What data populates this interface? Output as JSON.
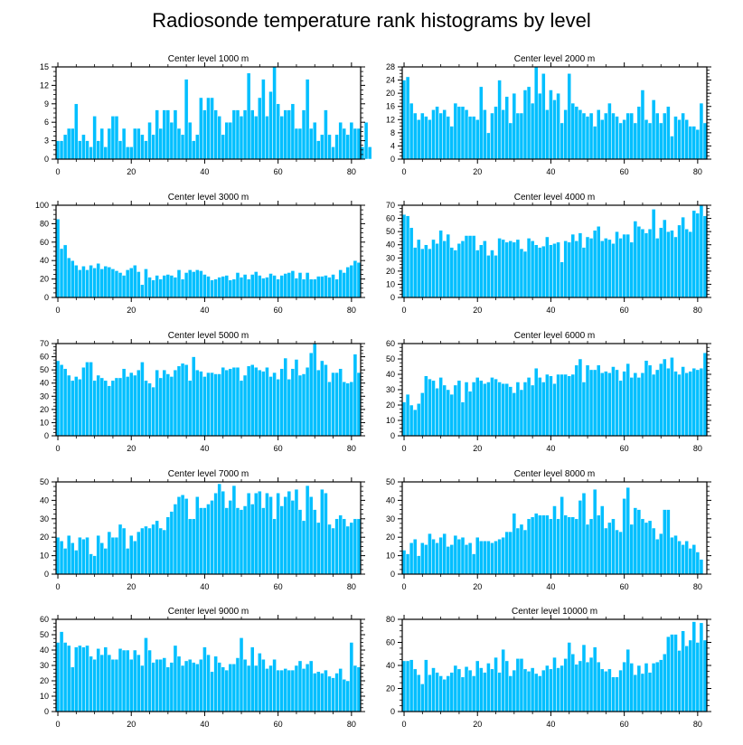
{
  "title": "Radiosonde temperature rank histograms by level",
  "chart_data": [
    {
      "type": "bar",
      "title": "Center level 1000 m",
      "xlabel": "",
      "ylabel": "",
      "x_ticks": [
        0,
        20,
        40,
        60,
        80
      ],
      "y_ticks": [
        0,
        3,
        6,
        9,
        12,
        15
      ],
      "xlim": [
        -0.5,
        82.5
      ],
      "ylim": [
        0,
        15
      ],
      "y_axis_side": "left",
      "color": "#00bfff",
      "values": [
        3,
        3,
        4,
        5,
        5,
        9,
        3,
        4,
        3,
        2,
        7,
        3,
        5,
        2,
        5,
        7,
        7,
        3,
        5,
        2,
        2,
        5,
        5,
        4,
        3,
        6,
        4,
        8,
        5,
        8,
        8,
        6,
        8,
        5,
        4,
        13,
        6,
        3,
        4,
        10,
        8,
        10,
        10,
        8,
        7,
        4,
        6,
        6,
        8,
        8,
        7,
        8,
        14,
        8,
        7,
        10,
        13,
        7,
        11,
        15,
        9,
        7,
        8,
        8,
        9,
        5,
        5,
        8,
        13,
        5,
        6,
        3,
        4,
        8,
        4,
        2,
        4,
        6,
        5,
        4,
        6,
        5,
        5,
        2,
        6,
        2
      ]
    },
    {
      "type": "bar",
      "title": "Center level 2000 m",
      "xlabel": "",
      "ylabel": "",
      "x_ticks": [
        0,
        20,
        40,
        60,
        80
      ],
      "y_ticks": [
        0,
        4,
        8,
        12,
        16,
        20,
        24,
        28
      ],
      "xlim": [
        -0.5,
        82.5
      ],
      "ylim": [
        0,
        28
      ],
      "y_axis_side": "left",
      "color": "#00bfff",
      "values": [
        24,
        25,
        17,
        14,
        12,
        14,
        13,
        12,
        15,
        16,
        14,
        15,
        13,
        10,
        17,
        16,
        16,
        15,
        13,
        13,
        12,
        22,
        15,
        8,
        14,
        16,
        24,
        15,
        19,
        11,
        20,
        14,
        14,
        21,
        22,
        17,
        28,
        20,
        26,
        15,
        21,
        18,
        20,
        11,
        15,
        26,
        17,
        16,
        15,
        14,
        13,
        14,
        10,
        15,
        12,
        14,
        17,
        14,
        13,
        11,
        12,
        14,
        14,
        11,
        16,
        21,
        12,
        11,
        18,
        14,
        11,
        14,
        16,
        7,
        13,
        12,
        14,
        12,
        10,
        10,
        9,
        17,
        11
      ]
    },
    {
      "type": "bar",
      "title": "Center level 3000 m",
      "xlabel": "",
      "ylabel": "",
      "x_ticks": [
        0,
        20,
        40,
        60,
        80
      ],
      "y_ticks": [
        0,
        20,
        40,
        60,
        80,
        100
      ],
      "xlim": [
        -0.5,
        82.5
      ],
      "ylim": [
        0,
        100
      ],
      "y_axis_side": "left",
      "color": "#00bfff",
      "values": [
        85,
        53,
        57,
        43,
        40,
        35,
        30,
        34,
        30,
        35,
        32,
        37,
        31,
        34,
        33,
        31,
        29,
        27,
        24,
        30,
        32,
        35,
        28,
        14,
        31,
        22,
        19,
        24,
        20,
        24,
        25,
        24,
        22,
        30,
        20,
        27,
        30,
        28,
        30,
        29,
        25,
        23,
        19,
        20,
        22,
        23,
        24,
        19,
        20,
        27,
        22,
        25,
        20,
        25,
        28,
        24,
        21,
        22,
        26,
        24,
        20,
        24,
        26,
        27,
        29,
        21,
        27,
        20,
        27,
        20,
        20,
        23,
        23,
        24,
        22,
        25,
        20,
        30,
        27,
        33,
        35,
        40,
        38
      ]
    },
    {
      "type": "bar",
      "title": "Center level 4000 m",
      "xlabel": "",
      "ylabel": "",
      "x_ticks": [
        0,
        20,
        40,
        60,
        80
      ],
      "y_ticks": [
        0,
        10,
        20,
        30,
        40,
        50,
        60,
        70
      ],
      "xlim": [
        -0.5,
        82.5
      ],
      "ylim": [
        0,
        70
      ],
      "y_axis_side": "left",
      "color": "#00bfff",
      "values": [
        63,
        62,
        53,
        38,
        44,
        37,
        40,
        37,
        44,
        41,
        51,
        43,
        48,
        38,
        36,
        41,
        43,
        47,
        47,
        47,
        36,
        40,
        43,
        32,
        36,
        32,
        45,
        44,
        42,
        43,
        42,
        44,
        37,
        35,
        45,
        43,
        40,
        38,
        39,
        46,
        40,
        41,
        42,
        27,
        43,
        42,
        48,
        43,
        49,
        38,
        46,
        45,
        51,
        54,
        43,
        45,
        44,
        41,
        50,
        45,
        48,
        48,
        42,
        58,
        54,
        52,
        49,
        52,
        67,
        45,
        53,
        59,
        50,
        51,
        46,
        55,
        61,
        52,
        50,
        66,
        64,
        70,
        62
      ]
    },
    {
      "type": "bar",
      "title": "Center level 5000 m",
      "xlabel": "",
      "ylabel": "",
      "x_ticks": [
        0,
        20,
        40,
        60,
        80
      ],
      "y_ticks": [
        0,
        10,
        20,
        30,
        40,
        50,
        60,
        70
      ],
      "xlim": [
        -0.5,
        82.5
      ],
      "ylim": [
        0,
        70
      ],
      "y_axis_side": "left",
      "color": "#00bfff",
      "values": [
        57,
        54,
        51,
        46,
        42,
        45,
        43,
        52,
        56,
        56,
        42,
        46,
        44,
        42,
        38,
        42,
        44,
        44,
        51,
        45,
        48,
        46,
        50,
        56,
        42,
        40,
        37,
        50,
        44,
        50,
        47,
        45,
        50,
        53,
        55,
        54,
        42,
        60,
        50,
        49,
        45,
        48,
        48,
        47,
        47,
        52,
        50,
        51,
        52,
        52,
        42,
        46,
        53,
        54,
        52,
        50,
        49,
        52,
        45,
        48,
        43,
        51,
        59,
        43,
        51,
        58,
        46,
        47,
        52,
        63,
        70,
        50,
        57,
        54,
        41,
        48,
        48,
        51,
        41,
        40,
        41,
        62,
        48
      ]
    },
    {
      "type": "bar",
      "title": "Center level 6000 m",
      "xlabel": "",
      "ylabel": "",
      "x_ticks": [
        0,
        20,
        40,
        60,
        80
      ],
      "y_ticks": [
        0,
        10,
        20,
        30,
        40,
        50,
        60
      ],
      "xlim": [
        -0.5,
        82.5
      ],
      "ylim": [
        0,
        60
      ],
      "y_axis_side": "left",
      "color": "#00bfff",
      "values": [
        22,
        27,
        20,
        17,
        21,
        28,
        39,
        37,
        36,
        31,
        38,
        33,
        30,
        27,
        33,
        36,
        22,
        35,
        29,
        35,
        38,
        36,
        34,
        35,
        38,
        37,
        35,
        34,
        34,
        32,
        28,
        35,
        30,
        35,
        38,
        33,
        44,
        38,
        35,
        40,
        39,
        34,
        40,
        40,
        40,
        39,
        40,
        46,
        50,
        35,
        46,
        43,
        43,
        46,
        41,
        42,
        41,
        45,
        43,
        36,
        42,
        47,
        38,
        41,
        38,
        41,
        49,
        46,
        40,
        43,
        47,
        50,
        44,
        51,
        42,
        40,
        45,
        41,
        42,
        44,
        43,
        44,
        54
      ]
    },
    {
      "type": "bar",
      "title": "Center level 7000 m",
      "xlabel": "",
      "ylabel": "",
      "x_ticks": [
        0,
        20,
        40,
        60,
        80
      ],
      "y_ticks": [
        0,
        10,
        20,
        30,
        40,
        50
      ],
      "xlim": [
        -0.5,
        82.5
      ],
      "ylim": [
        0,
        50
      ],
      "y_axis_side": "left",
      "color": "#00bfff",
      "values": [
        20,
        18,
        14,
        21,
        17,
        13,
        20,
        19,
        20,
        11,
        10,
        21,
        17,
        14,
        23,
        20,
        20,
        27,
        25,
        14,
        21,
        18,
        23,
        25,
        26,
        25,
        27,
        29,
        25,
        24,
        31,
        34,
        38,
        42,
        43,
        41,
        30,
        30,
        42,
        36,
        36,
        38,
        40,
        44,
        49,
        45,
        36,
        40,
        48,
        36,
        35,
        37,
        44,
        38,
        44,
        45,
        36,
        44,
        42,
        30,
        44,
        37,
        42,
        45,
        40,
        46,
        35,
        29,
        48,
        42,
        35,
        28,
        46,
        44,
        27,
        25,
        30,
        32,
        30,
        26,
        28,
        30,
        30
      ]
    },
    {
      "type": "bar",
      "title": "Center level 8000 m",
      "xlabel": "",
      "ylabel": "",
      "x_ticks": [
        0,
        20,
        40,
        60,
        80
      ],
      "y_ticks": [
        0,
        10,
        20,
        30,
        40,
        50
      ],
      "xlim": [
        -0.5,
        82.5
      ],
      "ylim": [
        0,
        50
      ],
      "y_axis_side": "left",
      "color": "#00bfff",
      "values": [
        13,
        11,
        17,
        19,
        10,
        17,
        16,
        22,
        19,
        17,
        20,
        22,
        15,
        16,
        21,
        19,
        20,
        16,
        17,
        11,
        20,
        18,
        18,
        18,
        17,
        18,
        19,
        20,
        23,
        23,
        33,
        25,
        27,
        24,
        30,
        31,
        33,
        32,
        32,
        32,
        30,
        37,
        30,
        42,
        32,
        31,
        31,
        30,
        40,
        44,
        27,
        30,
        46,
        32,
        37,
        25,
        28,
        30,
        24,
        23,
        41,
        47,
        27,
        36,
        35,
        30,
        28,
        29,
        25,
        19,
        22,
        35,
        35,
        20,
        21,
        18,
        16,
        18,
        14,
        16,
        12,
        8
      ]
    },
    {
      "type": "bar",
      "title": "Center level 9000 m",
      "xlabel": "",
      "ylabel": "",
      "x_ticks": [
        0,
        20,
        40,
        60,
        80
      ],
      "y_ticks": [
        0,
        10,
        20,
        30,
        40,
        50,
        60
      ],
      "xlim": [
        -0.5,
        82.5
      ],
      "ylim": [
        0,
        60
      ],
      "y_axis_side": "left",
      "color": "#00bfff",
      "values": [
        45,
        52,
        45,
        43,
        29,
        42,
        43,
        42,
        43,
        36,
        34,
        41,
        37,
        42,
        37,
        34,
        34,
        41,
        40,
        40,
        34,
        40,
        37,
        30,
        48,
        40,
        32,
        34,
        34,
        35,
        29,
        32,
        43,
        36,
        30,
        33,
        34,
        32,
        31,
        34,
        42,
        37,
        26,
        36,
        32,
        29,
        27,
        31,
        31,
        35,
        48,
        34,
        30,
        42,
        30,
        38,
        34,
        28,
        30,
        34,
        27,
        27,
        28,
        27,
        27,
        30,
        33,
        28,
        31,
        33,
        25,
        26,
        25,
        27,
        23,
        22,
        25,
        28,
        21,
        20,
        45,
        30,
        29
      ]
    },
    {
      "type": "bar",
      "title": "Center level 10000 m",
      "xlabel": "",
      "ylabel": "",
      "x_ticks": [
        0,
        20,
        40,
        60,
        80
      ],
      "y_ticks": [
        0,
        20,
        40,
        60,
        80
      ],
      "xlim": [
        -0.5,
        82.5
      ],
      "ylim": [
        0,
        80
      ],
      "y_axis_side": "left",
      "color": "#00bfff",
      "values": [
        44,
        44,
        45,
        37,
        32,
        24,
        45,
        32,
        38,
        34,
        31,
        28,
        31,
        34,
        40,
        37,
        30,
        39,
        36,
        31,
        44,
        38,
        34,
        42,
        37,
        47,
        34,
        54,
        44,
        31,
        36,
        46,
        46,
        37,
        35,
        38,
        33,
        31,
        36,
        40,
        37,
        47,
        38,
        40,
        46,
        60,
        50,
        41,
        44,
        58,
        43,
        47,
        56,
        43,
        37,
        35,
        37,
        30,
        30,
        36,
        43,
        54,
        42,
        32,
        40,
        33,
        42,
        34,
        42,
        43,
        45,
        50,
        65,
        67,
        67,
        53,
        70,
        57,
        62,
        78,
        60,
        77,
        62
      ]
    }
  ]
}
